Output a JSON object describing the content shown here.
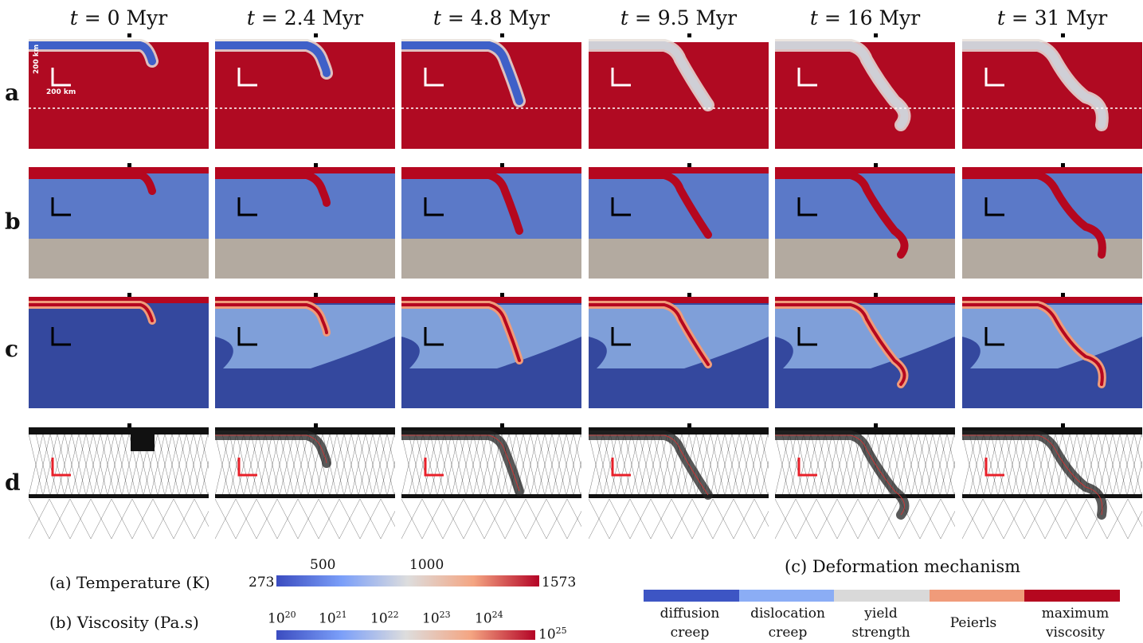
{
  "columns": [
    {
      "time_value": "0",
      "time_unit": "Myr"
    },
    {
      "time_value": "2.4",
      "time_unit": "Myr"
    },
    {
      "time_value": "4.8",
      "time_unit": "Myr"
    },
    {
      "time_value": "9.5",
      "time_unit": "Myr"
    },
    {
      "time_value": "16",
      "time_unit": "Myr"
    },
    {
      "time_value": "31",
      "time_unit": "Myr"
    }
  ],
  "time_symbol": "t",
  "rows": [
    {
      "label": "a",
      "field": "temperature"
    },
    {
      "label": "b",
      "field": "viscosity"
    },
    {
      "label": "c",
      "field": "deformation"
    },
    {
      "label": "d",
      "field": "mesh"
    }
  ],
  "scalebar": {
    "vertical_label": "200 km",
    "horizontal_label": "200 km"
  },
  "legend_temperature": {
    "title": "(a) Temperature (K)",
    "min": "273",
    "max": "1573",
    "ticks": [
      "500",
      "1000"
    ],
    "colors": [
      "#3b4cc0",
      "#dddddd",
      "#b40426"
    ]
  },
  "legend_viscosity": {
    "title": "(b) Viscosity (Pa.s)",
    "ticks": [
      {
        "base": "10",
        "exp": "20"
      },
      {
        "base": "10",
        "exp": "21"
      },
      {
        "base": "10",
        "exp": "22"
      },
      {
        "base": "10",
        "exp": "23"
      },
      {
        "base": "10",
        "exp": "24"
      }
    ],
    "max": {
      "base": "10",
      "exp": "25"
    }
  },
  "legend_deformation": {
    "title": "(c) Deformation mechanism",
    "categories": [
      {
        "line1": "diffusion",
        "line2": "creep",
        "color": "#3d55c4"
      },
      {
        "line1": "dislocation",
        "line2": "creep",
        "color": "#8badf5"
      },
      {
        "line1": "yield",
        "line2": "strength",
        "color": "#d9d9d9"
      },
      {
        "line1": "Peierls",
        "line2": "",
        "color": "#f09b7a"
      },
      {
        "line1": "maximum",
        "line2": "viscosity",
        "color": "#b5071f"
      }
    ]
  },
  "palette": {
    "mantle_hot": "#b00a22",
    "slab_cold": "#3f60c8",
    "viscosity_upper": "#5b79c8",
    "viscosity_lower": "#b3aaa0",
    "deform_diffusion": "#34489e",
    "deform_dislocation": "#7f9fd9",
    "scalebar_red": "#e8202a"
  }
}
